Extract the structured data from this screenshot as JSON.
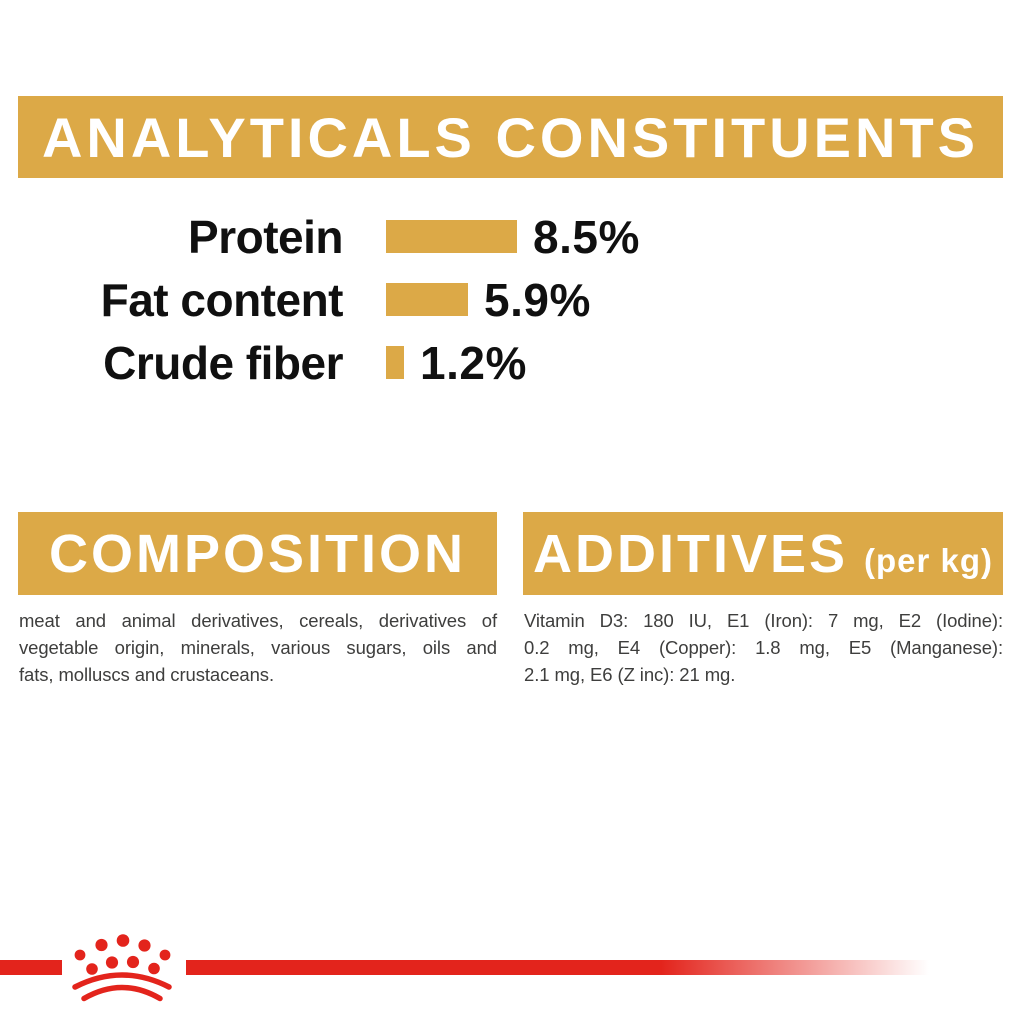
{
  "colors": {
    "gold": "#DCA947",
    "red": "#E3241C",
    "label_black": "#101010",
    "body_gray": "#3E3E3D",
    "banner_text": "#FFFFFF",
    "background": "#FFFFFF"
  },
  "header": {
    "title": "ANALYTICALS CONSTITUENTS"
  },
  "chart_data": {
    "type": "bar",
    "orientation": "horizontal",
    "categories": [
      "Protein",
      "Fat content",
      "Crude fiber"
    ],
    "values": [
      8.5,
      5.9,
      1.2
    ],
    "value_labels": [
      "8.5%",
      "5.9%",
      "1.2%"
    ],
    "unit": "%",
    "xlim": [
      0,
      8.5
    ],
    "bar_color": "#DCA947",
    "grid": false,
    "legend": false
  },
  "composition": {
    "title": "COMPOSITION",
    "lines": [
      "meat and animal derivatives, cereals, derivatives of",
      "vegetable origin, minerals, various sugars, oils and",
      "fats, molluscs and crustaceans."
    ],
    "text": "meat and animal derivatives, cereals, derivatives of vegetable origin, minerals, various sugars, oils and fats, molluscs and crustaceans."
  },
  "additives": {
    "title": "ADDITIVES",
    "subtitle": "(per kg)",
    "lines": [
      "Vitamin D3: 180 IU, E1 (Iron): 7 mg, E2 (Iodine):",
      "0.2 mg, E4 (Copper): 1.8 mg, E5 (Manganese):",
      "2.1 mg, E6 (Z inc): 21 mg."
    ],
    "text": "Vitamin D3: 180 IU, E1 (Iron): 7 mg, E2 (Iodine): 0.2 mg, E4 (Copper): 1.8 mg, E5 (Manganese): 2.1 mg, E6 (Z inc): 21 mg."
  },
  "footer": {
    "logo": "royal-canin-crown-logo"
  }
}
